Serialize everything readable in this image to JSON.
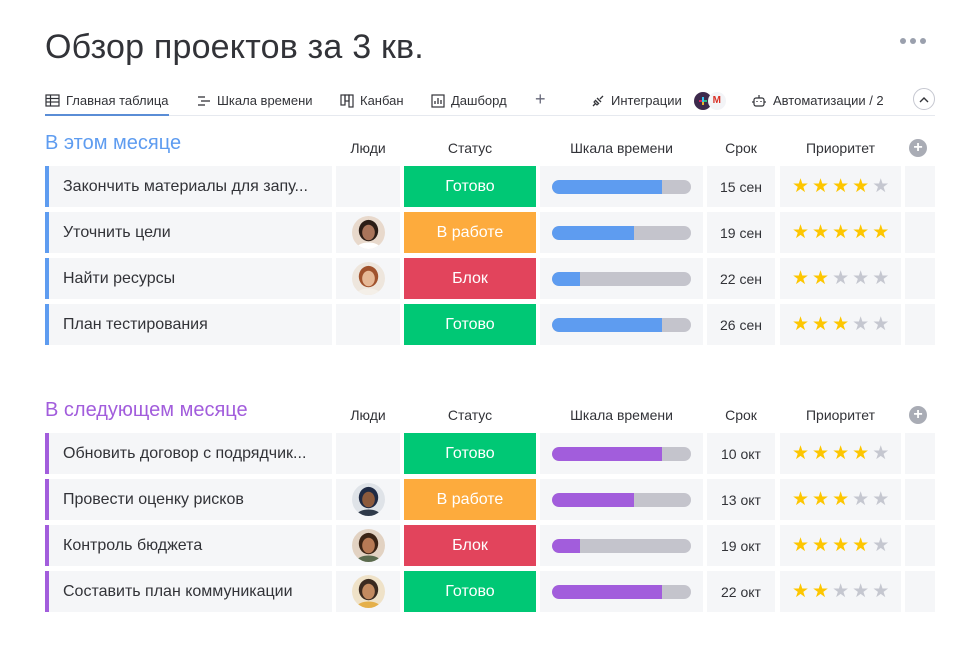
{
  "title": "Обзор проектов за 3 кв.",
  "tabs": [
    {
      "label": "Главная таблица",
      "icon": "table-icon",
      "active": true
    },
    {
      "label": "Шкала времени",
      "icon": "timeline-icon"
    },
    {
      "label": "Канбан",
      "icon": "kanban-icon"
    },
    {
      "label": "Дашборд",
      "icon": "dashboard-icon"
    }
  ],
  "add_view": "+",
  "integrations": {
    "label": "Интеграции",
    "logo_b": "M"
  },
  "automations": {
    "label": "Автоматизации / 2"
  },
  "columns": {
    "people": "Люди",
    "status": "Статус",
    "timeline": "Шкала времени",
    "due": "Срок",
    "priority": "Приоритет"
  },
  "colors": {
    "done": "#00c875",
    "working": "#fdab3d",
    "stuck": "#e2445c",
    "group1": "#5e9cf0",
    "group2": "#a25ddc",
    "star": "#fdc600"
  },
  "groups": [
    {
      "name": "В этом месяце",
      "color": "#5e9cf0",
      "rows": [
        {
          "name": "Закончить материалы для запу...",
          "person": "",
          "status": "Готово",
          "status_key": "done",
          "progress": 0.79,
          "due": "15 сен",
          "priority": 4
        },
        {
          "name": "Уточнить цели",
          "person": "avatar-1",
          "status": "В работе",
          "status_key": "working",
          "progress": 0.59,
          "due": "19 сен",
          "priority": 5
        },
        {
          "name": "Найти ресурсы",
          "person": "avatar-2",
          "status": "Блок",
          "status_key": "stuck",
          "progress": 0.2,
          "due": "22 сен",
          "priority": 2
        },
        {
          "name": "План тестирования",
          "person": "",
          "status": "Готово",
          "status_key": "done",
          "progress": 0.79,
          "due": "26 сен",
          "priority": 3
        }
      ]
    },
    {
      "name": "В следующем месяце",
      "color": "#a25ddc",
      "rows": [
        {
          "name": "Обновить договор с подрядчик...",
          "person": "",
          "status": "Готово",
          "status_key": "done",
          "progress": 0.79,
          "due": "10 окт",
          "priority": 4
        },
        {
          "name": "Провести оценку рисков",
          "person": "avatar-3",
          "status": "В работе",
          "status_key": "working",
          "progress": 0.59,
          "due": "13 окт",
          "priority": 3
        },
        {
          "name": "Контроль бюджета",
          "person": "avatar-4",
          "status": "Блок",
          "status_key": "stuck",
          "progress": 0.2,
          "due": "19 окт",
          "priority": 4
        },
        {
          "name": "Составить план коммуникации",
          "person": "avatar-5",
          "status": "Готово",
          "status_key": "done",
          "progress": 0.79,
          "due": "22 окт",
          "priority": 2
        }
      ]
    }
  ]
}
